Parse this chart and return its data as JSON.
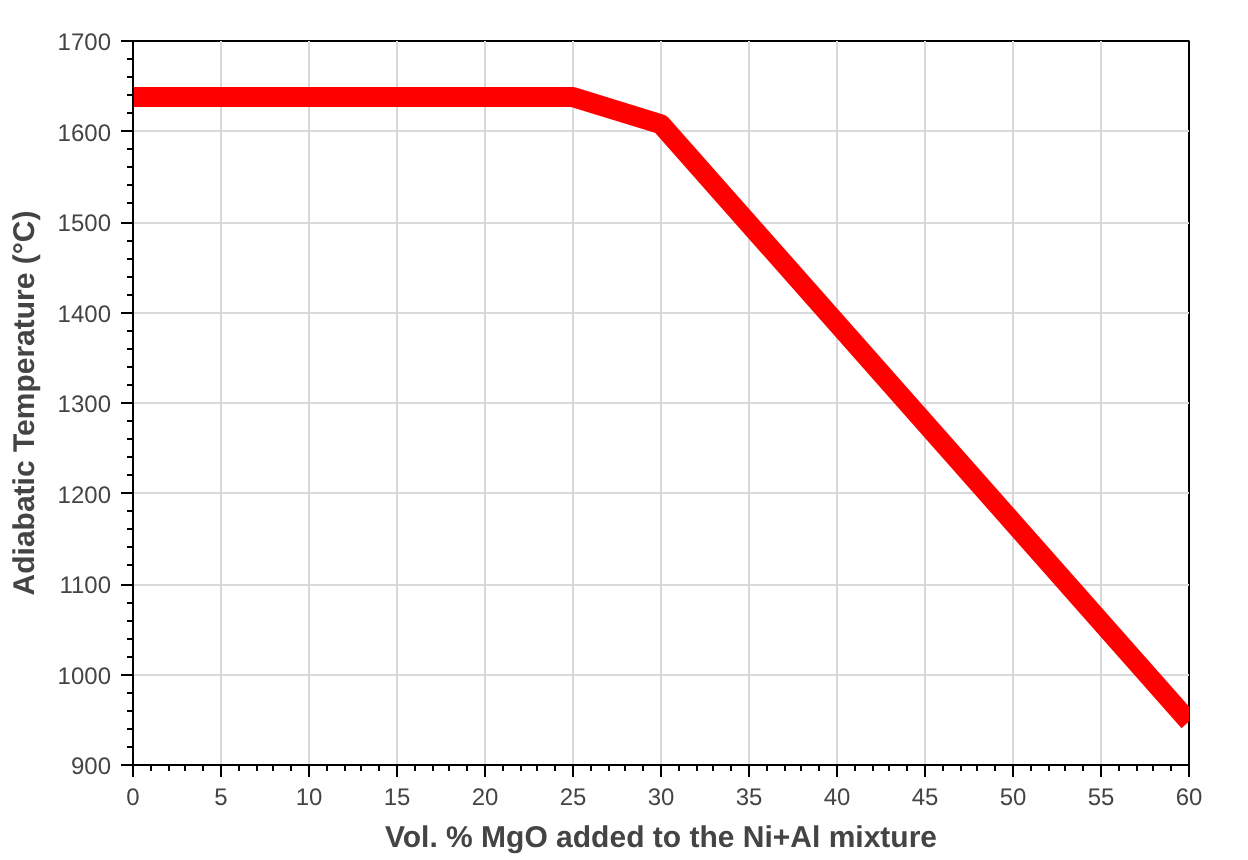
{
  "chart_data": {
    "type": "line",
    "xlabel": "Vol. % MgO added to the Ni+Al mixture",
    "ylabel": "Adiabatic Temperature (°C)",
    "x": [
      0,
      25,
      30,
      60
    ],
    "series": [
      {
        "color": "#ff0000",
        "values": [
          1638,
          1638,
          1608,
          948
        ]
      }
    ],
    "xlim": [
      0,
      60
    ],
    "xticks": [
      0,
      5,
      10,
      15,
      20,
      25,
      30,
      35,
      40,
      45,
      50,
      55,
      60
    ],
    "ylim": [
      900,
      1700
    ],
    "yticks": [
      900,
      1000,
      1100,
      1200,
      1300,
      1400,
      1500,
      1600,
      1700
    ],
    "grid": true,
    "marker": "none",
    "line_style": "solid"
  }
}
